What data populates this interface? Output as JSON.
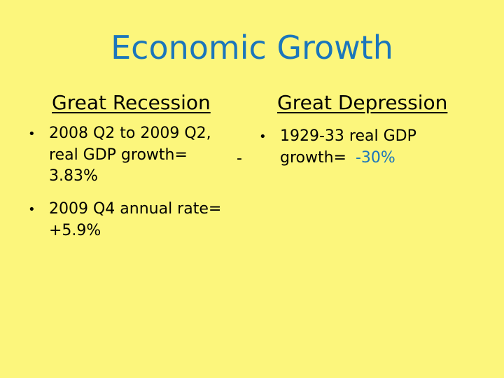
{
  "title": "Economic Growth",
  "left": {
    "heading": "Great Recession",
    "bullets": [
      {
        "line1": "2008 Q2 to 2009 Q2,",
        "line2": "real GDP growth=",
        "line3": "3.83%"
      },
      {
        "line1": "2009 Q4 annual rate=",
        "line2": "+5.9%"
      }
    ]
  },
  "minus_sign": "-",
  "right": {
    "heading": "Great Depression",
    "bullets": [
      {
        "line1": "1929-33 real GDP",
        "line2_prefix": "growth=",
        "line2_value": "-30%"
      }
    ]
  },
  "colors": {
    "background": "#FCF67C",
    "accent": "#1B76BB",
    "text": "#000000"
  }
}
